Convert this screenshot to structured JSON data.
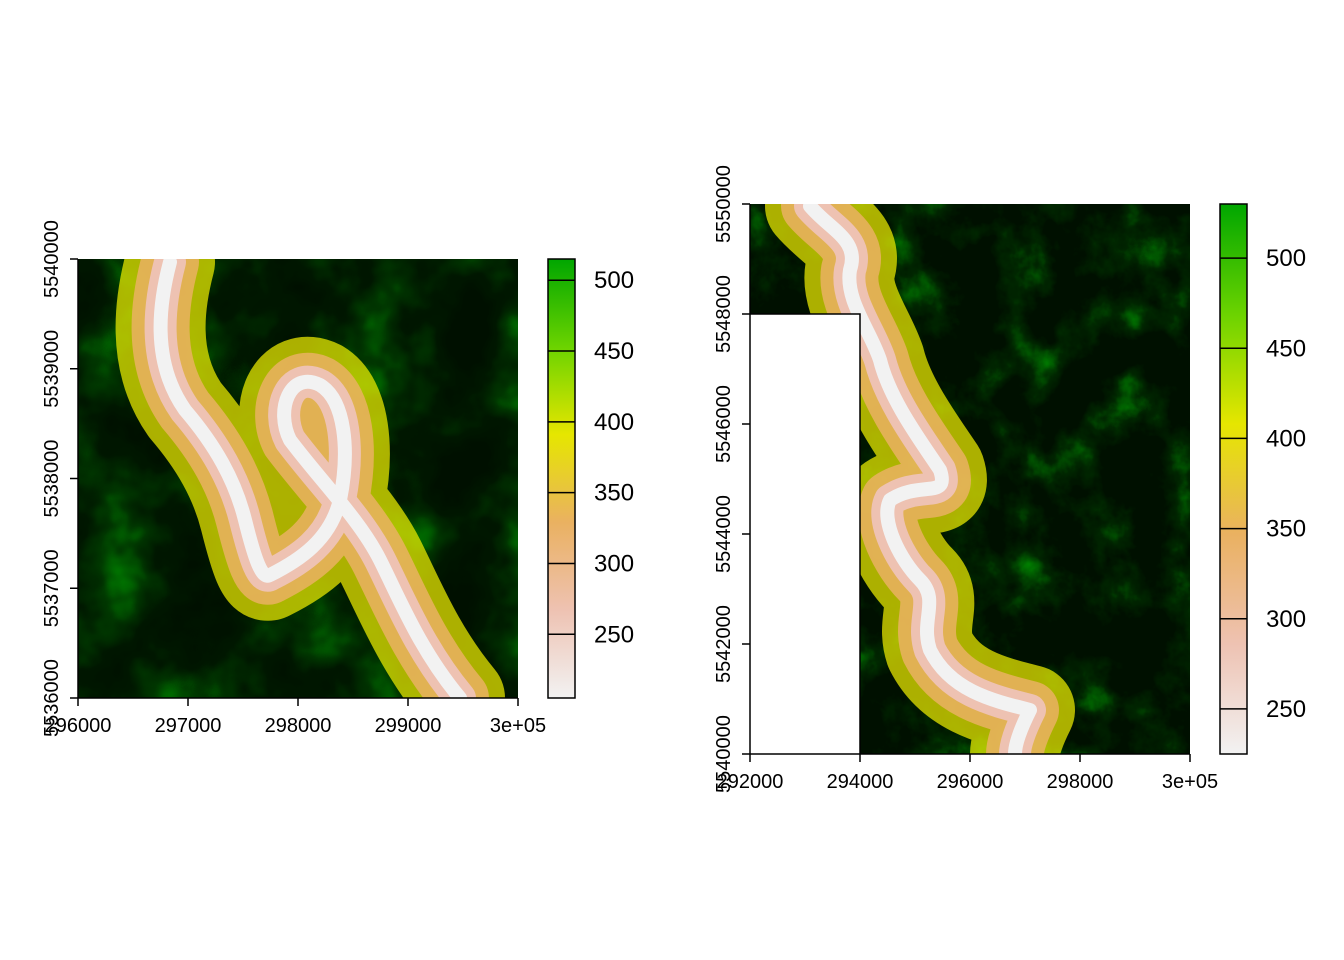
{
  "chart_data": [
    {
      "type": "heatmap",
      "title": "",
      "xlabel": "",
      "ylabel": "",
      "xlim": [
        296000,
        300000
      ],
      "ylim": [
        5536000,
        5540000
      ],
      "x_ticks": [
        {
          "value": 296000,
          "label": "296000"
        },
        {
          "value": 297000,
          "label": "297000"
        },
        {
          "value": 298000,
          "label": "298000"
        },
        {
          "value": 299000,
          "label": "299000"
        },
        {
          "value": 300000,
          "label": "3e+05"
        }
      ],
      "y_ticks": [
        {
          "value": 5536000,
          "label": "5536000"
        },
        {
          "value": 5537000,
          "label": "5537000"
        },
        {
          "value": 5538000,
          "label": "5538000"
        },
        {
          "value": 5539000,
          "label": "5539000"
        },
        {
          "value": 5540000,
          "label": "5540000"
        }
      ],
      "legend": {
        "range": [
          205,
          515
        ],
        "ticks": [
          {
            "value": 250,
            "label": "250"
          },
          {
            "value": 300,
            "label": "300"
          },
          {
            "value": 350,
            "label": "350"
          },
          {
            "value": 400,
            "label": "400"
          },
          {
            "value": 450,
            "label": "450"
          },
          {
            "value": 500,
            "label": "500"
          }
        ]
      },
      "missing_region": null
    },
    {
      "type": "heatmap",
      "title": "",
      "xlabel": "",
      "ylabel": "",
      "xlim": [
        292000,
        300000
      ],
      "ylim": [
        5540000,
        5550000
      ],
      "x_ticks": [
        {
          "value": 292000,
          "label": "292000"
        },
        {
          "value": 294000,
          "label": "294000"
        },
        {
          "value": 296000,
          "label": "296000"
        },
        {
          "value": 298000,
          "label": "298000"
        },
        {
          "value": 300000,
          "label": "3e+05"
        }
      ],
      "y_ticks": [
        {
          "value": 5540000,
          "label": "5540000"
        },
        {
          "value": 5542000,
          "label": "5542000"
        },
        {
          "value": 5544000,
          "label": "5544000"
        },
        {
          "value": 5546000,
          "label": "5546000"
        },
        {
          "value": 5548000,
          "label": "5548000"
        },
        {
          "value": 5550000,
          "label": "5550000"
        }
      ],
      "legend": {
        "range": [
          225,
          530
        ],
        "ticks": [
          {
            "value": 250,
            "label": "250"
          },
          {
            "value": 300,
            "label": "300"
          },
          {
            "value": 350,
            "label": "350"
          },
          {
            "value": 400,
            "label": "400"
          },
          {
            "value": 450,
            "label": "450"
          },
          {
            "value": 500,
            "label": "500"
          }
        ]
      },
      "missing_region": {
        "x": [
          292000,
          294000
        ],
        "y": [
          5540000,
          5548000
        ]
      }
    }
  ],
  "colors": {
    "ramp": [
      "#f2f2f2",
      "#eec2b2",
      "#eab161",
      "#e6e600",
      "#6bd300",
      "#00a600"
    ],
    "axis": "#000000",
    "background": "#ffffff"
  }
}
